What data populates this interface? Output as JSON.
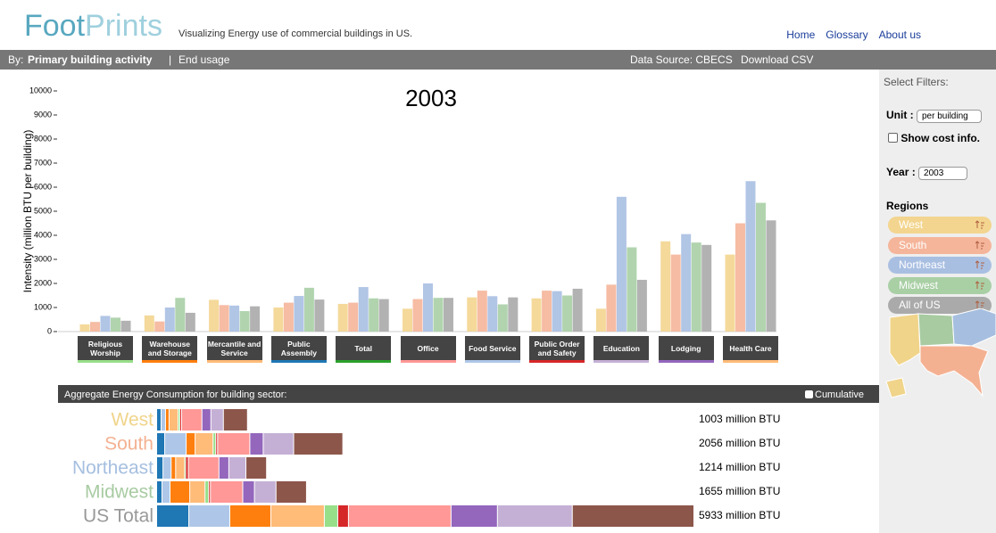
{
  "header": {
    "logo_parts": [
      "Foot",
      "Prints"
    ],
    "tagline": "Visualizing Energy use of commercial buildings in US.",
    "nav": [
      "Home",
      "Glossary",
      "About us"
    ]
  },
  "toolbar": {
    "by_label": "By:",
    "primary": "Primary building activity",
    "separator": "|",
    "secondary": "End usage",
    "source": "Data Source: CBECS",
    "download": "Download CSV"
  },
  "filters": {
    "title": "Select Filters:",
    "unit_label": "Unit :",
    "unit_value": "per building",
    "cost_label": "Show cost info.",
    "year_label": "Year :",
    "year_value": "2003",
    "regions_title": "Regions"
  },
  "chart_data": [
    {
      "type": "grouped_bar",
      "title": "2003",
      "ylabel": "Intensity (million BTU per building)",
      "categories": [
        "Religious Worship",
        "Warehouse and Storage",
        "Mercantile and Service",
        "Public Assembly",
        "Total",
        "Office",
        "Food Service",
        "Public Order and Safety",
        "Education",
        "Lodging",
        "Health Care"
      ],
      "category_colors": [
        "#98df8a",
        "#ff7f0e",
        "#ffbb78",
        "#1f77b4",
        "#2ca02c",
        "#ff9896",
        "#aec7e8",
        "#d62728",
        "#c5b0d5",
        "#9467bd",
        "#ffbb78"
      ],
      "ylim": [
        0,
        10000
      ],
      "yticks": [
        0,
        1000,
        2000,
        3000,
        4000,
        5000,
        6000,
        7000,
        8000,
        9000,
        10000
      ],
      "series": [
        {
          "name": "West",
          "color": "#f3d58f",
          "values": [
            300,
            670,
            1320,
            1000,
            1150,
            950,
            1420,
            1380,
            950,
            3750,
            3200
          ]
        },
        {
          "name": "South",
          "color": "#f5b59a",
          "values": [
            400,
            420,
            1100,
            1200,
            1200,
            1350,
            1700,
            1700,
            1950,
            3200,
            4500
          ]
        },
        {
          "name": "Northeast",
          "color": "#a9bfe2",
          "values": [
            650,
            1000,
            1080,
            1480,
            1850,
            2000,
            1470,
            1680,
            5600,
            4050,
            6250
          ]
        },
        {
          "name": "Midwest",
          "color": "#a9cfa5",
          "values": [
            580,
            1400,
            850,
            1820,
            1380,
            1400,
            1130,
            1500,
            3500,
            3700,
            5350
          ]
        },
        {
          "name": "All of US",
          "color": "#aaaaaa",
          "values": [
            450,
            780,
            1050,
            1330,
            1350,
            1400,
            1420,
            1780,
            2150,
            3600,
            4620
          ]
        }
      ]
    },
    {
      "type": "stacked_hbar",
      "title": "Aggregate Energy Consumption for building sector:",
      "toggle": "Cumulative",
      "categories": [
        "West",
        "South",
        "Northeast",
        "Midwest",
        "US Total"
      ],
      "category_colors": [
        "#f0d48a",
        "#f4b192",
        "#a6bfe0",
        "#a8cba2",
        "#999999"
      ],
      "segment_colors": [
        "#1f77b4",
        "#aec7e8",
        "#ff7f0e",
        "#ffbb78",
        "#98df8a",
        "#d62728",
        "#ff9896",
        "#9467bd",
        "#c5b0d5",
        "#8c564b"
      ],
      "segments": [
        [
          49,
          49,
          39,
          99,
          20,
          20,
          224,
          99,
          138,
          266
        ],
        [
          89,
          237,
          99,
          198,
          30,
          20,
          356,
          148,
          336,
          543
        ],
        [
          70,
          90,
          50,
          100,
          10,
          30,
          338,
          109,
          189,
          228
        ],
        [
          59,
          89,
          218,
          168,
          40,
          20,
          357,
          129,
          238,
          337
        ],
        [
          355,
          453,
          453,
          591,
          148,
          118,
          1133,
          512,
          827,
          1343
        ]
      ],
      "values": [
        1003,
        2056,
        1214,
        1655,
        5933
      ],
      "value_labels": [
        "1003 million BTU",
        "2056 million BTU",
        "1214 million BTU",
        "1655 million BTU",
        "5933 million BTU"
      ]
    }
  ]
}
